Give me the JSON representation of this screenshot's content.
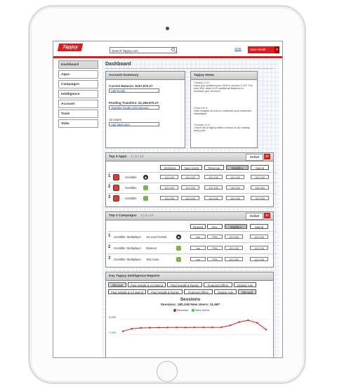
{
  "topbar": {
    "logo": "Tapjoy",
    "search_value": "Search Tapjoy.com",
    "sdk_link": "SDK",
    "user_name": "Jane Smith",
    "user_menu_glyph": "▾",
    "accent": "#d81e1e"
  },
  "sidebar": {
    "items": [
      {
        "label": "Dashboard"
      },
      {
        "label": "Apps"
      },
      {
        "label": "Campaigns"
      },
      {
        "label": "Intelligence"
      },
      {
        "label": "Account"
      },
      {
        "label": "Tools"
      },
      {
        "label": "Stats"
      }
    ]
  },
  "page": {
    "title": "Dashboard"
  },
  "account_summary": {
    "title": "Account Summary",
    "current_balance": "Current Balance: $167,975.27",
    "add_funds": "Add Funds",
    "pending_transfers": "Pending Transfers: $1,259,975.27",
    "transfer_funds": "Transfer Funds (10% Bonus)",
    "users": "15 Users",
    "add_new_user": "Add New User"
  },
  "news": {
    "title": "Tapjoy News",
    "items": [
      {
        "date": "Tuesday 12.12",
        "text": "Have you updated your SDK to version 2.15? The new SDK adds in 25 additional features to increase your revenue."
      },
      {
        "date": "Friday 8.8.12",
        "text": "Gain insights on how to maximize your rewarded campaigns."
      },
      {
        "date": "Thursday 12.12",
        "text": "Check out a highly edited version of our holiday party pics."
      }
    ]
  },
  "top_apps": {
    "title": "Top 3 Apps",
    "count_links": "3 | 5 | 10",
    "active_label": "Active",
    "badge": "37",
    "columns": [
      "Sessions",
      "New Users",
      "Revenue",
      "Installs ▾",
      "Spend"
    ],
    "rows": [
      {
        "rank": "1",
        "name": "Scrabble",
        "platform": "iOS",
        "platform_glyph": "◉",
        "values": [
          "122,233",
          "122,233",
          "122,233",
          "122,233",
          "122,233"
        ]
      },
      {
        "rank": "2",
        "name": "Scrabble",
        "platform": "Android",
        "values": [
          "122,233",
          "122,233",
          "122,233",
          "144,000",
          "144,000"
        ]
      },
      {
        "rank": "3",
        "name": "Scrabble",
        "platform": "Android",
        "values": [
          "122,233",
          "122,233",
          "122,233",
          "122,233",
          "122,233"
        ]
      }
    ]
  },
  "top_campaigns": {
    "title": "Top 3 Campaigns",
    "count_links": "3 | 5 | 10",
    "active_label": "Active",
    "badge": "37",
    "columns": [
      "Reward",
      "Rev",
      "Installs ▾",
      "Spend"
    ],
    "rows": [
      {
        "rank": "1",
        "name": "Scrabble: Multiplayer",
        "campaign": "1st Level Install",
        "platform": "iOS",
        "platform_glyph": "◉",
        "reward": "Yes",
        "rev": "PPA",
        "values": [
          "122,233",
          "122,233"
        ]
      },
      {
        "rank": "2",
        "name": "Scrabble: Multiplayer",
        "campaign": "Blowout",
        "platform": "Android",
        "reward": "Yes",
        "rev": "PPA",
        "values": [
          "122,233",
          "122,233"
        ]
      },
      {
        "rank": "3",
        "name": "Scrabble: Multiplayer",
        "campaign": "Test Case",
        "platform": "Android",
        "reward": "Yes",
        "rev": "PPA",
        "values": [
          "122,233",
          "122,233"
        ]
      }
    ]
  },
  "intelligence": {
    "title": "Key Tapjoy Intelligence Reports",
    "row1": [
      "Offerwall",
      "Paid Installs & Ad Spend",
      "Paid Installs & Ranks",
      "Featured Offers",
      "Display Ads"
    ],
    "row2": [
      "Paid Installs & Ad Spend",
      "Paid Installs & Ranks",
      "Featured Offers",
      "Display Ads",
      "Offerwall"
    ],
    "chart_title": "Sessions",
    "chart_sub": "Sessions: 180,249  New Users: 11,687"
  },
  "chart_data": {
    "type": "line",
    "title": "Sessions",
    "subtitle": "Sessions: 180,249  New Users: 11,687",
    "yticks": [
      "9,000",
      "7,200"
    ],
    "ylim": [
      6500,
      9500
    ],
    "series": [
      {
        "name": "Sessions",
        "color": "#d81e1e",
        "values": [
          7600,
          7900,
          8000,
          8020,
          8040,
          8050,
          8060,
          8050,
          8060,
          8060,
          8060,
          8070,
          8300,
          8700,
          8900,
          8600,
          7800
        ]
      },
      {
        "name": "New Users",
        "color": "#33cc33",
        "values": []
      }
    ],
    "legend_placement": "top"
  }
}
